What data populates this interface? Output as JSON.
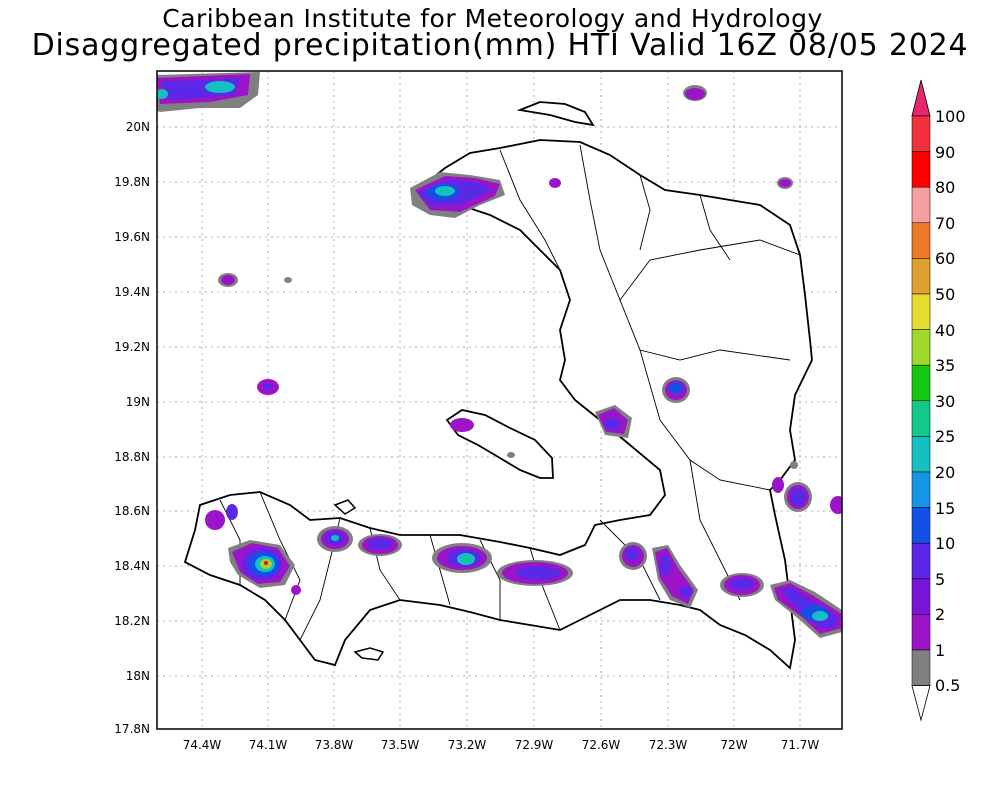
{
  "title": {
    "line1": "Caribbean Institute for Meteorology and Hydrology",
    "line2": "Disaggregated precipitation(mm) HTI Valid 16Z 08/05 2024"
  },
  "axes": {
    "lat_labels": [
      "20N",
      "19.8N",
      "19.6N",
      "19.4N",
      "19.2N",
      "19N",
      "18.8N",
      "18.6N",
      "18.4N",
      "18.2N",
      "18N",
      "17.8N"
    ],
    "lon_labels": [
      "74.4W",
      "74.1W",
      "73.8W",
      "73.5W",
      "73.2W",
      "72.9W",
      "72.6W",
      "72.3W",
      "72W",
      "71.7W"
    ]
  },
  "colorbar": {
    "labels": [
      "100",
      "90",
      "80",
      "70",
      "60",
      "50",
      "40",
      "35",
      "30",
      "25",
      "20",
      "15",
      "10",
      "5",
      "2",
      "1",
      "0.5"
    ],
    "colors": {
      "c90_100": "#e8266d",
      "c80_90": "#f0303a",
      "c70_80": "#ff0000",
      "c60_70": "#f5a0a0",
      "c50_60": "#ec7a28",
      "c40_50": "#e0a030",
      "c35_40": "#e8dc30",
      "c30_35": "#a0d82c",
      "c25_30": "#14c814",
      "c20_25": "#14c88c",
      "c15_20": "#14c0c0",
      "c10_15": "#1496e6",
      "c5_10": "#1450e6",
      "c2_5": "#5a28e6",
      "c1_2": "#9c14c8",
      "c05_1": "#808080"
    }
  },
  "map": {
    "region": "Haiti",
    "lon_range": [
      -74.6,
      -71.6
    ],
    "lat_range": [
      17.8,
      20.2
    ]
  }
}
